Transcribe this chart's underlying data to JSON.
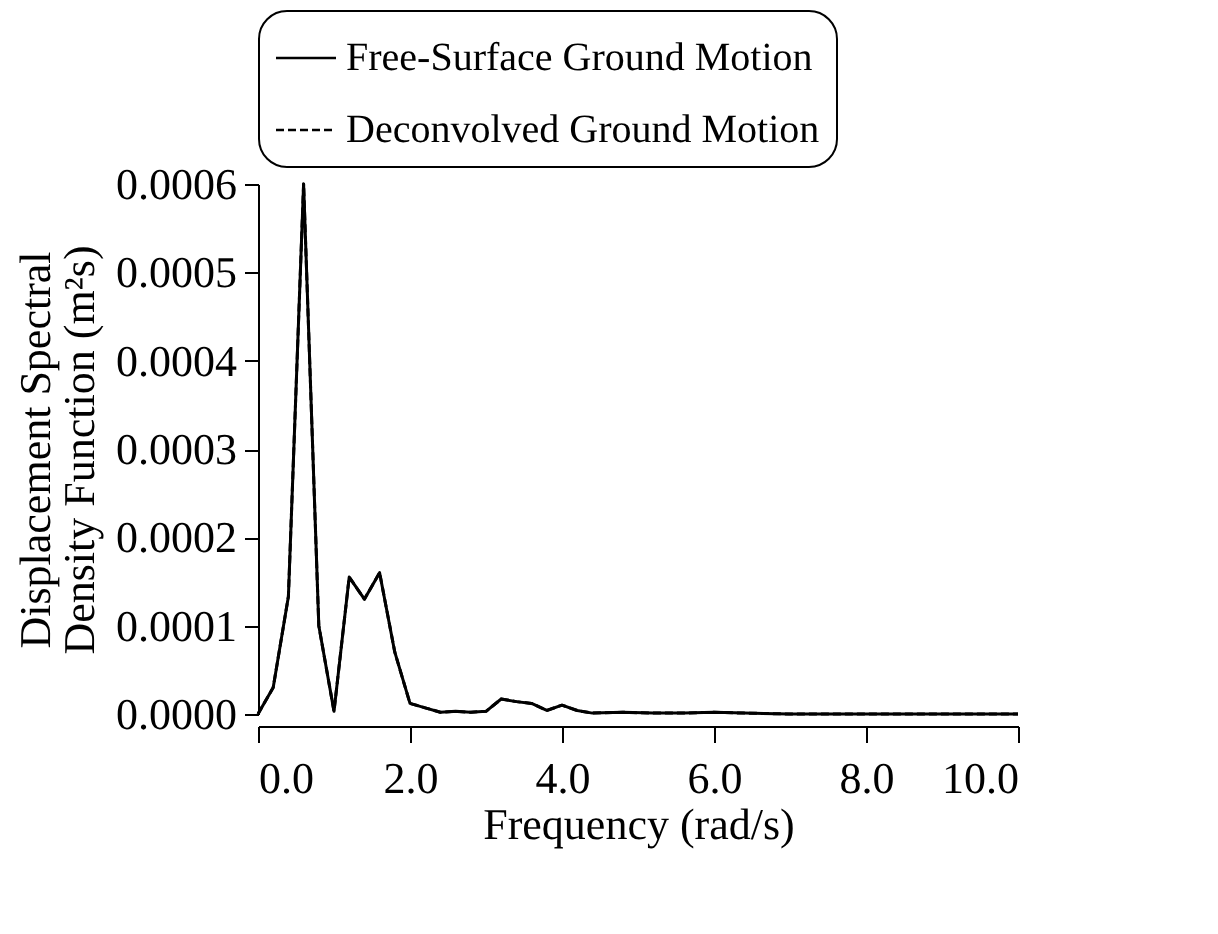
{
  "chart_data": {
    "type": "line",
    "xlabel": "Frequency (rad/s)",
    "ylabel": "Displacement Spectral\nDensity Function (m²s)",
    "x": [
      0,
      0.2,
      0.4,
      0.6,
      0.8,
      1.0,
      1.2,
      1.4,
      1.6,
      1.8,
      2.0,
      2.2,
      2.4,
      2.6,
      2.8,
      3.0,
      3.2,
      3.4,
      3.6,
      3.8,
      4.0,
      4.2,
      4.4,
      4.8,
      5.2,
      5.6,
      6.0,
      6.4,
      7.0,
      8.0,
      9.0,
      10.0
    ],
    "series": [
      {
        "name": "Free-Surface Ground Motion",
        "color": "#000000",
        "line_style": "solid",
        "values": [
          0,
          3e-05,
          0.000133,
          0.0006,
          0.0001,
          3e-06,
          0.000155,
          0.00013,
          0.00016,
          7e-05,
          1.2e-05,
          7e-06,
          2e-06,
          3e-06,
          2e-06,
          3e-06,
          1.7e-05,
          1.4e-05,
          1.2e-05,
          4e-06,
          1e-05,
          4e-06,
          1e-06,
          2e-06,
          1e-06,
          1e-06,
          2e-06,
          1e-06,
          0,
          0,
          0,
          0
        ]
      },
      {
        "name": "Deconvolved Ground Motion",
        "color": "#000000",
        "line_style": "dashed",
        "values": [
          0,
          3e-05,
          0.000133,
          0.0006,
          0.0001,
          3e-06,
          0.000155,
          0.00013,
          0.00016,
          7e-05,
          1.2e-05,
          7e-06,
          2e-06,
          3e-06,
          2e-06,
          3e-06,
          1.7e-05,
          1.4e-05,
          1.2e-05,
          4e-06,
          1e-05,
          4e-06,
          1e-06,
          2e-06,
          1e-06,
          1e-06,
          2e-06,
          1e-06,
          0,
          0,
          0,
          0
        ]
      }
    ],
    "xlim": [
      0,
      10
    ],
    "xticks": [
      {
        "value": 0,
        "label": "0.0"
      },
      {
        "value": 2,
        "label": "2.0"
      },
      {
        "value": 4,
        "label": "4.0"
      },
      {
        "value": 6,
        "label": "6.0"
      },
      {
        "value": 8,
        "label": "8.0"
      },
      {
        "value": 10,
        "label": "10.0"
      }
    ],
    "ylim": [
      0,
      0.0006
    ],
    "yticks": [
      {
        "value": 0,
        "label": "0.0000"
      },
      {
        "value": 0.0001,
        "label": "0.0001"
      },
      {
        "value": 0.0002,
        "label": "0.0002"
      },
      {
        "value": 0.0003,
        "label": "0.0003"
      },
      {
        "value": 0.0004,
        "label": "0.0004"
      },
      {
        "value": 0.0005,
        "label": "0.0005"
      },
      {
        "value": 0.0006,
        "label": "0.0006"
      }
    ],
    "grid": false,
    "legend": "top"
  }
}
